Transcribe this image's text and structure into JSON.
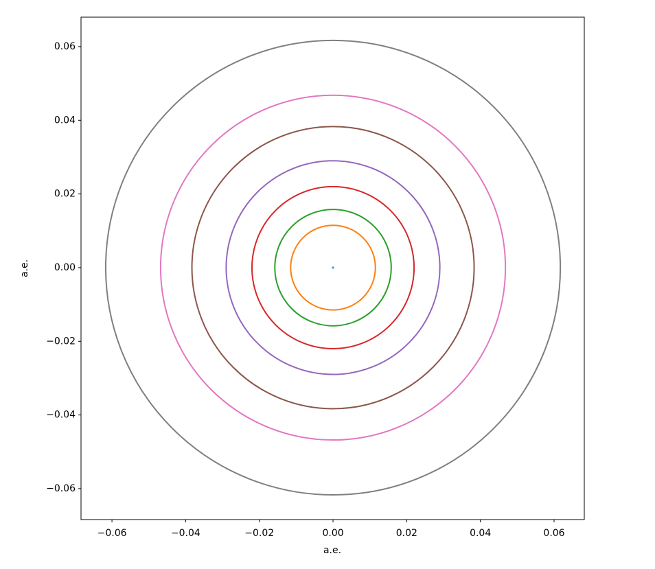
{
  "chart_data": {
    "type": "orbit",
    "xlabel": "a.e.",
    "ylabel": "a.e.",
    "xlim": [
      -0.0684,
      0.0682
    ],
    "ylim": [
      -0.0684,
      0.068
    ],
    "xticks": [
      {
        "value": -0.06,
        "label": "−0.06"
      },
      {
        "value": -0.04,
        "label": "−0.04"
      },
      {
        "value": -0.02,
        "label": "−0.02"
      },
      {
        "value": 0,
        "label": "0.00"
      },
      0.02,
      0.04,
      0.06
    ],
    "yticks": [
      {
        "value": -0.06,
        "label": "−0.06"
      },
      {
        "value": -0.04,
        "label": "−0.04"
      },
      {
        "value": -0.02,
        "label": "−0.02"
      },
      {
        "value": 0,
        "label": "0.00"
      },
      0.02,
      0.04,
      0.06
    ],
    "grid": false,
    "series": [
      {
        "color": "#1f77b4",
        "radius": 0.0002
      },
      {
        "color": "#ff7f0e",
        "radius": 0.0115
      },
      {
        "color": "#2ca02c",
        "radius": 0.0158
      },
      {
        "color": "#d62728",
        "radius": 0.022
      },
      {
        "color": "#9467bd",
        "radius": 0.029
      },
      {
        "color": "#8c564b",
        "radius": 0.0383
      },
      {
        "color": "#e377c2",
        "radius": 0.0468
      },
      {
        "color": "#7f7f7f",
        "radius": 0.0617
      }
    ]
  }
}
